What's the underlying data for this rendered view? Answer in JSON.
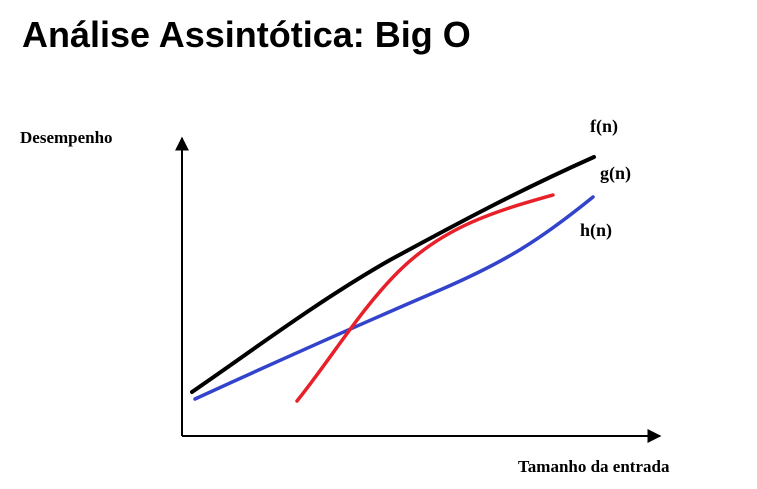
{
  "slide": {
    "title": "Análise Assintótica: Big O"
  },
  "diagram": {
    "y_axis_label": "Desempenho",
    "x_axis_label": "Tamanho da entrada",
    "curves": [
      {
        "name": "f(n)",
        "color": "#000000"
      },
      {
        "name": "g(n)",
        "color": "#e8202a"
      },
      {
        "name": "h(n)",
        "color": "#3344cc"
      }
    ]
  }
}
